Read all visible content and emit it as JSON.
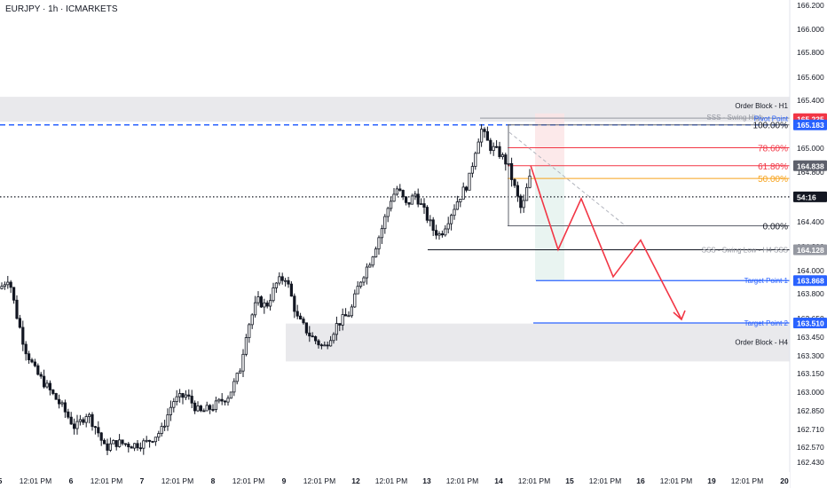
{
  "header": {
    "title": "EURJPY · 1h · ICMARKETS"
  },
  "colors": {
    "up": "#131722",
    "down": "#131722",
    "pivot_blue": "#2962ff",
    "orange": "#f7a21b",
    "fib_red": "#f23645",
    "target_blue": "#2962ff",
    "zone_gray": "#e9e9ec",
    "arrow_red": "#f23645",
    "gray_line": "#5d606b"
  },
  "chart_data": {
    "type": "candlestick",
    "symbol": "EURJPY",
    "timeframe": "1h",
    "broker": "ICMARKETS",
    "ylim": [
      162.33,
      166.27
    ],
    "price_ticks": [
      166.2,
      166.0,
      165.8,
      165.6,
      165.4,
      165.2,
      165.0,
      164.8,
      164.6,
      164.4,
      164.2,
      164.0,
      163.8,
      163.65,
      163.45,
      163.3,
      163.15,
      163.0,
      162.85,
      162.71,
      162.57,
      162.43
    ],
    "time_labels": [
      "5",
      "12:01 PM",
      "6",
      "12:01 PM",
      "7",
      "12:01 PM",
      "8",
      "12:01 PM",
      "9",
      "12:01 PM",
      "12",
      "12:01 PM",
      "13",
      "12:01 PM",
      "14",
      "12:01 PM",
      "15",
      "12:01 PM",
      "16",
      "12:01 PM",
      "19",
      "12:01 PM",
      "20"
    ],
    "price_axis_labels": [
      {
        "text": "165.235",
        "price": 165.235,
        "color": "#f23645"
      },
      {
        "text": "165.183",
        "price": 165.183,
        "color": "#2962ff"
      },
      {
        "text": "164.838",
        "price": 164.838,
        "color": "#5d606b"
      },
      {
        "text": "54:16",
        "price": 164.575,
        "color": "#131722"
      },
      {
        "text": "164.128",
        "price": 164.128,
        "color": "#9598a1"
      },
      {
        "text": "163.868",
        "price": 163.868,
        "color": "#2962ff"
      },
      {
        "text": "163.510",
        "price": 163.51,
        "color": "#2962ff"
      }
    ],
    "annotations": {
      "order_block_h1": {
        "label": "Order Block - H1",
        "top": 165.42,
        "bottom": 165.21
      },
      "order_block_h4": {
        "label": "Order Block - H4",
        "top": 163.505,
        "bottom": 163.185
      },
      "sss_swing_high": {
        "label": "SSS - Swing High",
        "price": 165.24
      },
      "pivot_point": {
        "label": "Pivot Point",
        "price": 165.183
      },
      "current_price": 164.575,
      "sss_swing_low": {
        "label": "SSS - Swing Low - H4 SSS",
        "price": 164.128
      },
      "target_point_1": {
        "label": "Target Point 1",
        "price": 163.868
      },
      "target_point_2": {
        "label": "Target Point 2",
        "price": 163.51
      },
      "fib_levels": [
        {
          "label": "100.00%",
          "price": 165.183
        },
        {
          "label": "78.60%",
          "price": 164.99
        },
        {
          "label": "61.80%",
          "price": 164.838
        },
        {
          "label": "50.00%",
          "price": 164.73
        },
        {
          "label": "0.00%",
          "price": 164.33
        }
      ],
      "projected_path": [
        164.84,
        164.13,
        164.56,
        163.9,
        164.21,
        163.54
      ]
    }
  }
}
